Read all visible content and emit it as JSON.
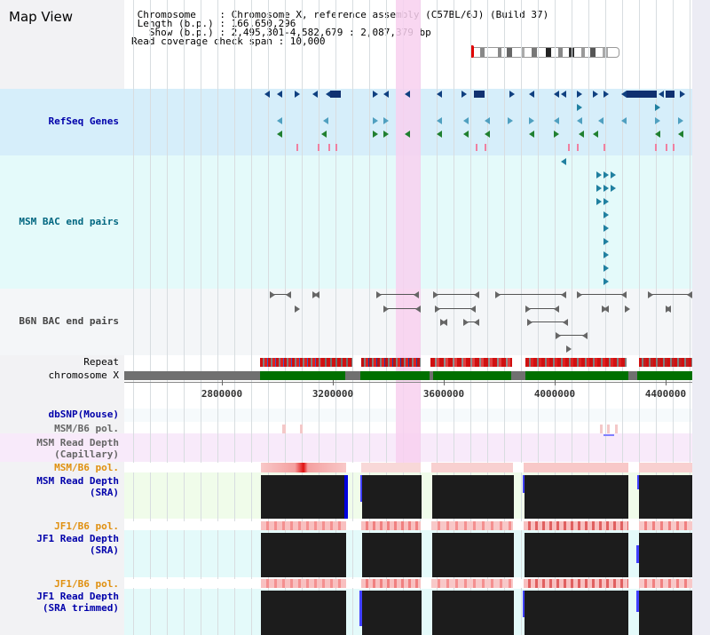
{
  "title": "Map View",
  "header": {
    "line1": " Chromosome    : Chromosome X, reference assembly (C57BL/6J) (Build 37)",
    "line2": " Length (b.p.) : 166,650,296",
    "line3": "   Show (b.p.) : 2,495,301-4,582,679 : 2,087,379 bp",
    "line4": "Read coverage check span : 10,000"
  },
  "tracks": {
    "refseq": "RefSeq Genes",
    "msm_bac": "MSM BAC end pairs",
    "b6n_bac": "B6N BAC end pairs",
    "repeat": "Repeat",
    "chromosome": "chromosome X",
    "dbsnp": "dbSNP(Mouse)",
    "msm_b6_pol_1": "MSM/B6 pol.",
    "msm_depth_cap_1": "MSM Read Depth",
    "msm_depth_cap_2": "(Capillary)",
    "msm_b6_pol_2": "MSM/B6 pol.",
    "msm_depth_sra_1": "MSM Read Depth",
    "msm_depth_sra_2": "(SRA)",
    "jf1_pol_1": "JF1/B6 pol.",
    "jf1_depth_1": "JF1 Read Depth",
    "jf1_depth_2": "(SRA)",
    "jf1_pol_2": "JF1/B6 pol.",
    "jf1_trim_1": "JF1 Read Depth",
    "jf1_trim_2": "(SRA trimmed)"
  },
  "axis_ticks": [
    "2800000",
    "3200000",
    "3600000",
    "4000000",
    "4400000"
  ],
  "colors": {
    "label_blue": "#0000aa",
    "label_teal": "#006680",
    "label_gray": "#444444",
    "label_orange": "#e09010",
    "refseq_bg": "#d6eefa",
    "bac_bg": "#e4fafa",
    "highlight": "#f8d0ee",
    "depth_black": "#1c1c1c",
    "chrom_green": "#007000"
  }
}
